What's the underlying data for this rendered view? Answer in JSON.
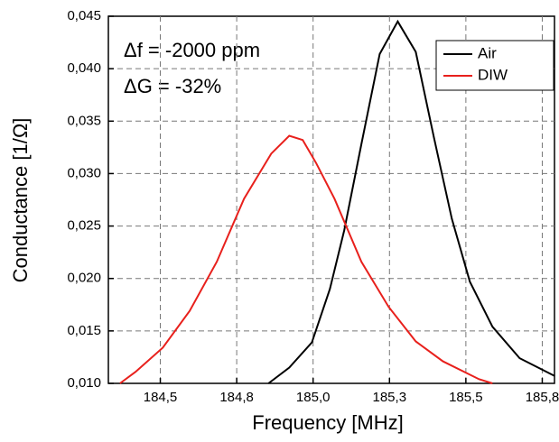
{
  "chart_data": {
    "type": "line",
    "x_label": "Frequency [MHz]",
    "y_label": "Conductance [1/Ω]",
    "annotations": [
      "Δf = -2000 ppm",
      "ΔG = -32%"
    ],
    "series": [
      {
        "name": "Air",
        "color": "#000000",
        "x": [
          184.854,
          184.922,
          184.996,
          185.055,
          185.102,
          185.158,
          185.218,
          185.277,
          185.336,
          185.395,
          185.454,
          185.513,
          185.587,
          185.676,
          185.791
        ],
        "values": [
          0.01,
          0.0115,
          0.0139,
          0.019,
          0.0246,
          0.0328,
          0.0414,
          0.0445,
          0.0416,
          0.0335,
          0.0257,
          0.0197,
          0.0154,
          0.0124,
          0.0107
        ]
      },
      {
        "name": "DIW",
        "color": "#e8201c",
        "x": [
          184.368,
          184.419,
          184.508,
          184.596,
          184.685,
          184.774,
          184.863,
          184.922,
          184.966,
          185.01,
          185.07,
          185.158,
          185.247,
          185.336,
          185.425,
          185.543,
          185.587
        ],
        "values": [
          0.01,
          0.0111,
          0.0134,
          0.0169,
          0.0216,
          0.0276,
          0.0319,
          0.0336,
          0.0332,
          0.031,
          0.0276,
          0.0216,
          0.0173,
          0.014,
          0.0121,
          0.0104,
          0.01
        ]
      }
    ],
    "xlim": [
      184.33,
      185.79
    ],
    "ylim": [
      0.01,
      0.045
    ],
    "xticks": [
      {
        "value": 184.5,
        "label": "184,5"
      },
      {
        "value": 184.75,
        "label": "184,8"
      },
      {
        "value": 185.0,
        "label": "185,0"
      },
      {
        "value": 185.25,
        "label": "185,3"
      },
      {
        "value": 185.5,
        "label": "185,5"
      },
      {
        "value": 185.75,
        "label": "185,8"
      }
    ],
    "yticks": [
      {
        "value": 0.01,
        "label": "0,010"
      },
      {
        "value": 0.015,
        "label": "0,015"
      },
      {
        "value": 0.02,
        "label": "0,020"
      },
      {
        "value": 0.025,
        "label": "0,025"
      },
      {
        "value": 0.03,
        "label": "0,030"
      },
      {
        "value": 0.035,
        "label": "0,035"
      },
      {
        "value": 0.04,
        "label": "0,040"
      },
      {
        "value": 0.045,
        "label": "0,045"
      }
    ],
    "grid": true,
    "legend": "upper right"
  }
}
